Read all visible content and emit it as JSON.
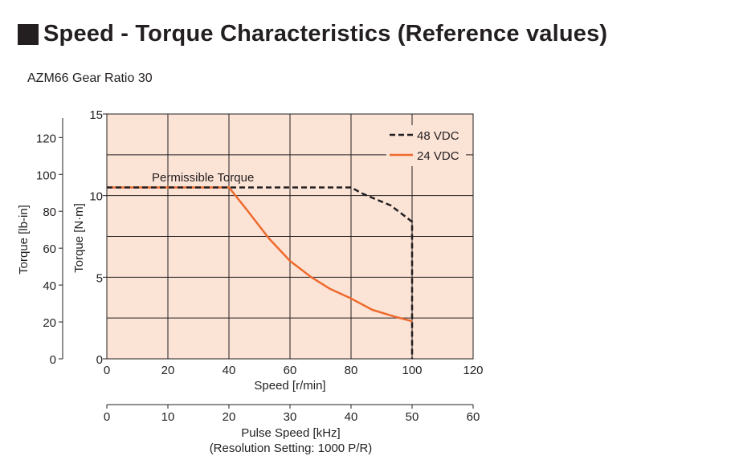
{
  "header": {
    "title": "Speed - Torque Characteristics (Reference values)",
    "subtitle": "AZM66  Gear Ratio 30"
  },
  "colors": {
    "plot_background": "#fbe3d6",
    "grid": "#231f20",
    "series_48": "#231f20",
    "series_24": "#ee6a2c"
  },
  "chart_data": {
    "type": "line",
    "xlabel": "Speed [r/min]",
    "xlim": [
      0,
      120
    ],
    "x_ticks": [
      "0",
      "20",
      "40",
      "60",
      "80",
      "100",
      "120"
    ],
    "ylabel": "Torque [N·m]",
    "ylim": [
      0,
      15
    ],
    "y_ticks": [
      "0",
      "5",
      "10",
      "15"
    ],
    "ylabel_secondary": "Torque [lb-in]",
    "y2lim": [
      0,
      132.76
    ],
    "y2_ticks": [
      "0",
      "20",
      "40",
      "60",
      "80",
      "100",
      "120"
    ],
    "x2label": "Pulse Speed [kHz]",
    "x2label_note": "(Resolution Setting: 1000 P/R)",
    "x2lim": [
      0,
      60
    ],
    "x2_ticks": [
      "0",
      "10",
      "20",
      "30",
      "40",
      "50",
      "60"
    ],
    "grid": true,
    "legend": "top-right",
    "annotation": "Permissible Torque",
    "series": [
      {
        "name": "48 VDC",
        "style": "dashed",
        "x": [
          0,
          80,
          84,
          93,
          100,
          100
        ],
        "y": [
          10.5,
          10.5,
          10.1,
          9.4,
          8.4,
          0
        ]
      },
      {
        "name": "24 VDC",
        "style": "solid",
        "x": [
          0,
          40,
          46,
          53,
          60,
          67,
          73,
          80,
          87,
          94,
          100
        ],
        "y": [
          10.5,
          10.5,
          9.1,
          7.4,
          6.0,
          5.0,
          4.3,
          3.7,
          3.0,
          2.6,
          2.3
        ]
      }
    ]
  }
}
